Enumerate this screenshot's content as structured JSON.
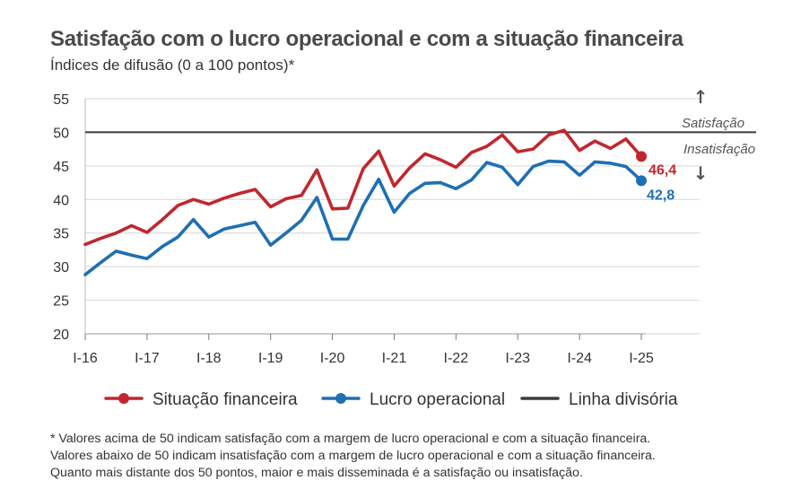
{
  "title": "Satisfação com o lucro operacional e com a situação financeira",
  "subtitle": "Índices de difusão (0 a 100 pontos)*",
  "annotations": {
    "above": "Satisfação",
    "below": "Insatisfação",
    "arrow_up": "↑",
    "arrow_down": "↓"
  },
  "footnote": [
    "* Valores acima de 50 indicam satisfação com a margem de lucro operacional e com a situação financeira.",
    "Valores abaixo de 50 indicam insatisfação com a margem de lucro operacional e com a situação financeira.",
    "Quanto mais distante dos 50 pontos, maior e mais disseminada é a satisfação ou insatisfação."
  ],
  "colors": {
    "situacao": "#c0272d",
    "lucro": "#1f6fb2",
    "divisoria": "#3c3c3c",
    "grid": "#d6d6d6",
    "axis_text": "#333333"
  },
  "chart_data": {
    "type": "line",
    "title": "Satisfação com o lucro operacional e com a situação financeira",
    "ylabel": "",
    "xlabel": "",
    "ylim": [
      20,
      55
    ],
    "yticks": [
      20,
      25,
      30,
      35,
      40,
      45,
      50,
      55
    ],
    "grid": "horizontal",
    "legend_position": "bottom",
    "x_tick_labels": [
      "I-16",
      "I-17",
      "I-18",
      "I-19",
      "I-20",
      "I-21",
      "I-22",
      "I-23",
      "I-24",
      "I-25"
    ],
    "x_tick_every": 4,
    "x": [
      "I-16",
      "II-16",
      "III-16",
      "IV-16",
      "I-17",
      "II-17",
      "III-17",
      "IV-17",
      "I-18",
      "II-18",
      "III-18",
      "IV-18",
      "I-19",
      "II-19",
      "III-19",
      "IV-19",
      "I-20",
      "II-20",
      "III-20",
      "IV-20",
      "I-21",
      "II-21",
      "III-21",
      "IV-21",
      "I-22",
      "II-22",
      "III-22",
      "IV-22",
      "I-23",
      "II-23",
      "III-23",
      "IV-23",
      "I-24",
      "II-24",
      "III-24",
      "IV-24",
      "I-25"
    ],
    "series": [
      {
        "name": "Situação financeira",
        "color": "#c0272d",
        "values": [
          33.3,
          34.2,
          35.0,
          36.1,
          35.1,
          37.0,
          39.1,
          40.0,
          39.3,
          40.2,
          40.9,
          41.5,
          38.9,
          40.1,
          40.6,
          44.4,
          38.6,
          38.7,
          44.6,
          47.2,
          42.0,
          44.7,
          46.8,
          45.9,
          44.8,
          47.0,
          47.9,
          49.6,
          47.1,
          47.5,
          49.6,
          50.3,
          47.3,
          48.7,
          47.6,
          49.0,
          46.4
        ],
        "end_label": "46,4"
      },
      {
        "name": "Lucro operacional",
        "color": "#1f6fb2",
        "values": [
          28.8,
          30.6,
          32.3,
          31.7,
          31.2,
          33.0,
          34.4,
          37.0,
          34.4,
          35.6,
          36.1,
          36.6,
          33.2,
          35.0,
          36.9,
          40.3,
          34.1,
          34.1,
          39.1,
          43.0,
          38.1,
          40.9,
          42.4,
          42.5,
          41.6,
          42.9,
          45.5,
          44.8,
          42.2,
          44.9,
          45.7,
          45.6,
          43.6,
          45.6,
          45.4,
          44.9,
          42.8
        ],
        "end_label": "42,8"
      }
    ],
    "reference_line": {
      "name": "Linha divisória",
      "value": 50
    }
  },
  "legend": [
    {
      "label": "Situação financeira"
    },
    {
      "label": "Lucro operacional"
    },
    {
      "label": "Linha divisória"
    }
  ]
}
